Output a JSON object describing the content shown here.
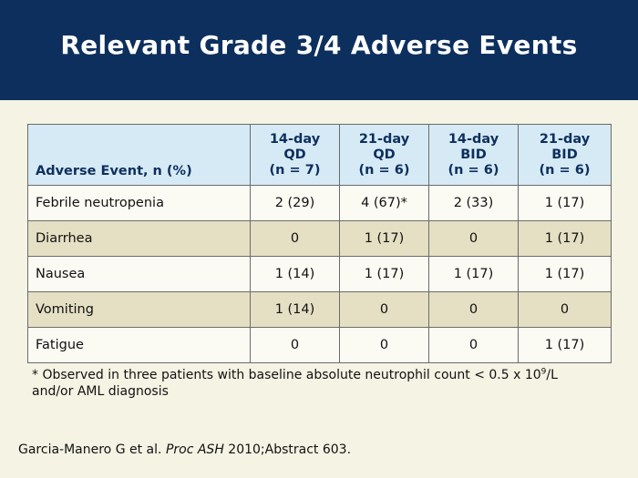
{
  "slide": {
    "title": "Relevant Grade 3/4 Adverse Events",
    "colors": {
      "header_bg": "#0d2f5e",
      "table_header_bg": "#d6eaf5",
      "row_alt_bg": "#e5dfc4",
      "page_bg": "#f5f3e3"
    }
  },
  "table": {
    "first_header": "Adverse Event, n (%)",
    "columns": [
      {
        "line1": "14-day",
        "line2": "QD",
        "line3": "(n = 7)"
      },
      {
        "line1": "21-day",
        "line2": "QD",
        "line3": "(n = 6)"
      },
      {
        "line1": "14-day",
        "line2": "BID",
        "line3": "(n = 6)"
      },
      {
        "line1": "21-day",
        "line2": "BID",
        "line3": "(n = 6)"
      }
    ],
    "rows": [
      {
        "event": "Febrile neutropenia",
        "values": [
          "2 (29)",
          "4 (67)*",
          "2 (33)",
          "1 (17)"
        ]
      },
      {
        "event": "Diarrhea",
        "values": [
          "0",
          "1 (17)",
          "0",
          "1 (17)"
        ]
      },
      {
        "event": "Nausea",
        "values": [
          "1 (14)",
          "1 (17)",
          "1 (17)",
          "1 (17)"
        ]
      },
      {
        "event": "Vomiting",
        "values": [
          "1 (14)",
          "0",
          "0",
          "0"
        ]
      },
      {
        "event": "Fatigue",
        "values": [
          "0",
          "0",
          "0",
          "1 (17)"
        ]
      }
    ]
  },
  "footnote": {
    "text_before_sup": "* Observed in three patients with baseline absolute neutrophil count < 0.5 x 10",
    "sup": "9",
    "text_after_sup": "/L",
    "line2": "and/or AML diagnosis"
  },
  "citation": {
    "authors": "Garcia-Manero G et al. ",
    "journal": "Proc ASH",
    "details": " 2010;Abstract 603."
  }
}
